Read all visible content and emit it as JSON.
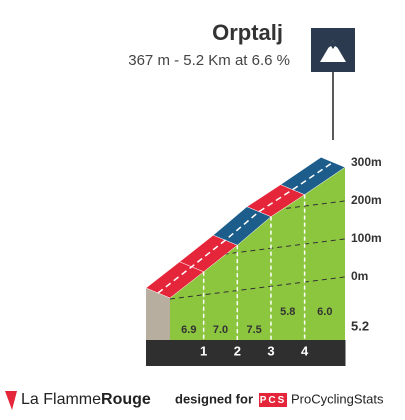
{
  "chart_data": {
    "type": "profile",
    "title": "Orptalj",
    "subtitle": "367 m - 5.2 Km at 6.6 %",
    "xlim": [
      0,
      5.2
    ],
    "xticks": [
      1,
      2,
      3,
      4,
      5.2
    ],
    "values": [
      6.9,
      7,
      7.5,
      5.8,
      6
    ],
    "value_labels": [
      "6.9",
      "7.0",
      "7.5",
      "5.8",
      "6.0"
    ],
    "colors": [
      "#e5263a",
      "#e5263a",
      "#1d5d8c",
      "#e5263a",
      "#1d5d8c"
    ],
    "face_color": "#8cc63f",
    "yticks": [
      {
        "value": 0,
        "label": "0m"
      },
      {
        "value": 100,
        "label": "100m"
      },
      {
        "value": 200,
        "label": "200m"
      },
      {
        "value": 300,
        "label": "300m"
      }
    ]
  },
  "footer": {
    "brand_a": "La Flamme",
    "brand_b": "Rouge",
    "designed": "designed for",
    "pcs": "PCS",
    "site": "ProCyclingStats"
  }
}
